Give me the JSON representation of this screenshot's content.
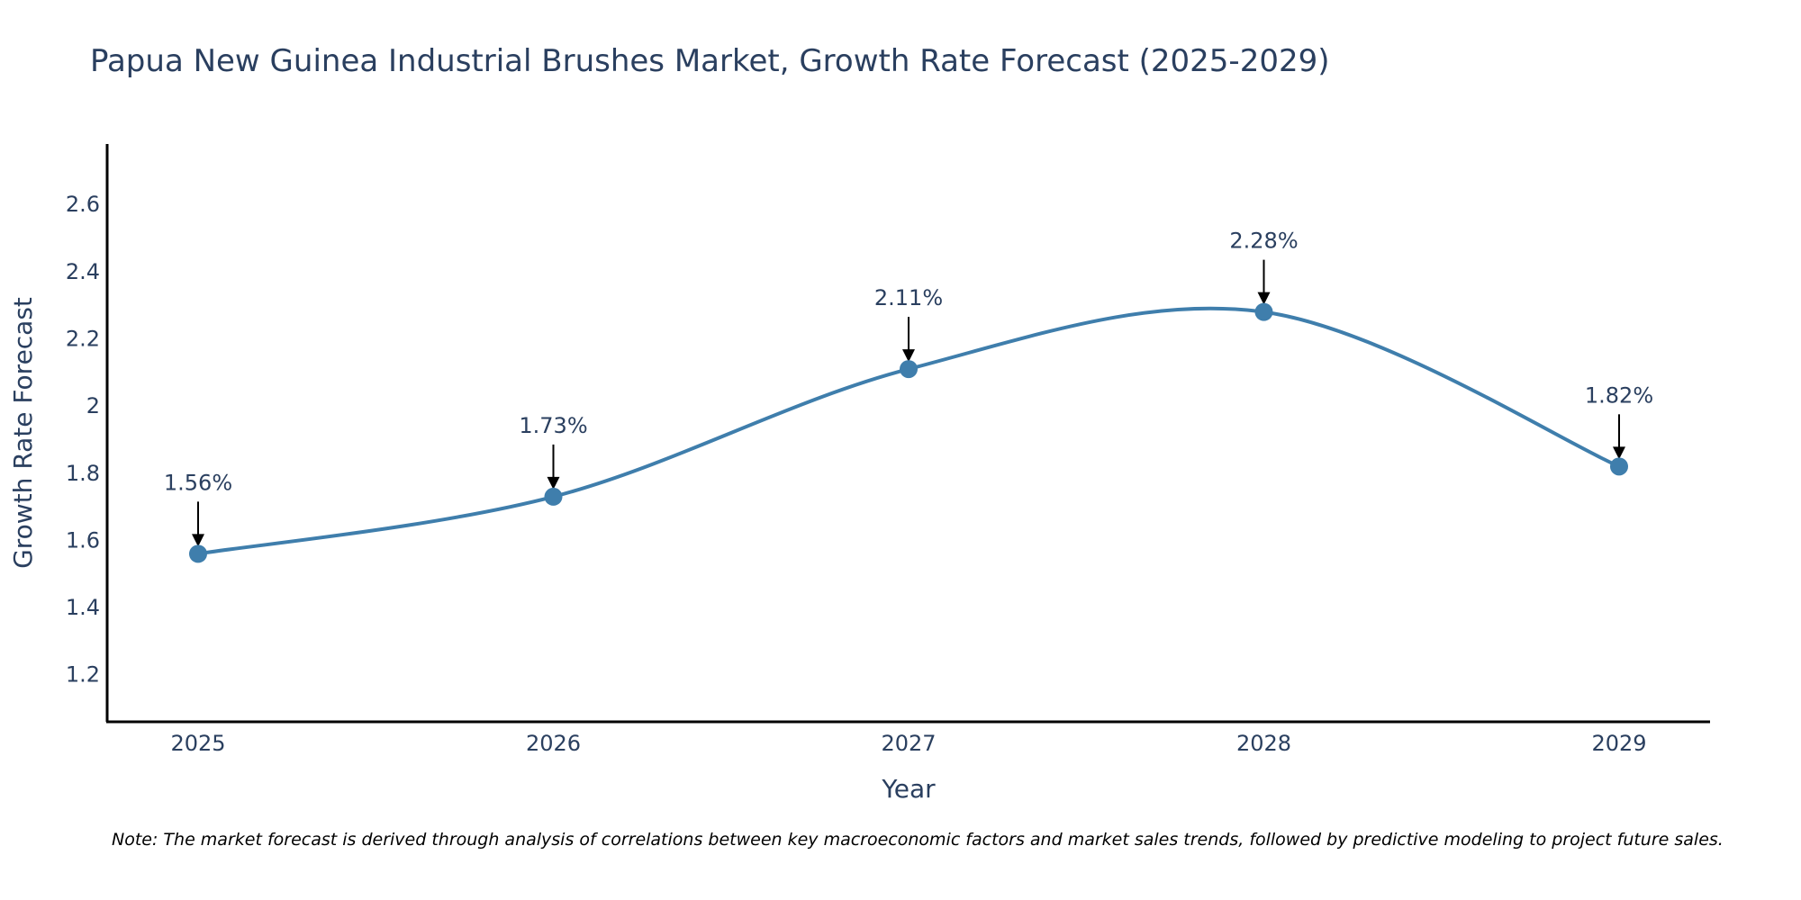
{
  "chart_data": {
    "type": "line",
    "title": "Papua New Guinea Industrial Brushes Market, Growth Rate Forecast (2025-2029)",
    "xlabel": "Year",
    "ylabel": "Growth Rate Forecast",
    "categories": [
      "2025",
      "2026",
      "2027",
      "2028",
      "2029"
    ],
    "series": [
      {
        "name": "Growth Rate Forecast",
        "values": [
          1.56,
          1.73,
          2.11,
          2.28,
          1.82
        ]
      }
    ],
    "data_labels": [
      "1.56%",
      "1.73%",
      "2.11%",
      "2.28%",
      "1.82%"
    ],
    "ylim": [
      1.06,
      2.78
    ],
    "yticks": [
      1.2,
      1.4,
      1.6,
      1.8,
      2,
      2.2,
      2.4,
      2.6
    ],
    "ytick_labels": [
      "1.2",
      "1.4",
      "1.6",
      "1.8",
      "2",
      "2.2",
      "2.4",
      "2.6"
    ],
    "grid": false,
    "line_color": "#3f7eac",
    "note": "Note: The market forecast is derived through analysis of correlations between key macroeconomic factors and market sales trends, followed by predictive modeling to project future sales."
  }
}
